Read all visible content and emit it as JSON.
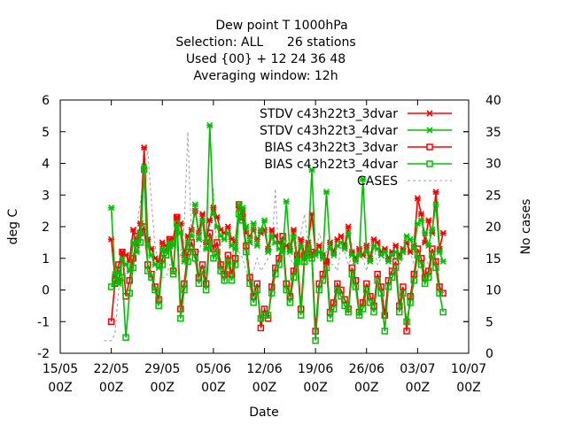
{
  "chart_data": {
    "type": "line",
    "title_lines": [
      "Dew point T 1000hPa",
      "Selection: ALL      26 stations",
      "Used {00} + 12 24 36 48",
      "Averaging window: 12h"
    ],
    "xlabel": "Date",
    "ylabel": "deg C",
    "y2label": "No cases",
    "ylim": [
      -2,
      6
    ],
    "y2lim": [
      0,
      40
    ],
    "yticks": [
      "-2",
      "-1",
      "0",
      "1",
      "2",
      "3",
      "4",
      "5",
      "6"
    ],
    "y2ticks": [
      "0",
      "5",
      "10",
      "15",
      "20",
      "25",
      "30",
      "35",
      "40"
    ],
    "xlim": [
      "2024-05-15T00",
      "2024-07-10T00"
    ],
    "xticks": [
      {
        "day": "15/05",
        "hour": "00Z"
      },
      {
        "day": "22/05",
        "hour": "00Z"
      },
      {
        "day": "29/05",
        "hour": "00Z"
      },
      {
        "day": "05/06",
        "hour": "00Z"
      },
      {
        "day": "12/06",
        "hour": "00Z"
      },
      {
        "day": "19/06",
        "hour": "00Z"
      },
      {
        "day": "26/06",
        "hour": "00Z"
      },
      {
        "day": "03/07",
        "hour": "00Z"
      },
      {
        "day": "10/07",
        "hour": "00Z"
      }
    ],
    "grid": false,
    "legend_position": "top-right",
    "x_step_hours": 12,
    "series": [
      {
        "name": "STDV c43h22t3_3dvar",
        "color": "#ff0000",
        "marker": "x",
        "axis": "y",
        "x_start": "2024-05-22T00",
        "values": [
          1.6,
          0.4,
          0.3,
          1.2,
          1.1,
          0.9,
          1.9,
          1.4,
          2.1,
          4.5,
          1.6,
          1.3,
          1.0,
          0.9,
          1.5,
          1.4,
          1.6,
          1.6,
          2.3,
          2.1,
          1.1,
          1.7,
          1.9,
          2.5,
          1.8,
          2.4,
          1.5,
          2.2,
          2.6,
          2.3,
          1.9,
          1.8,
          2.0,
          1.6,
          1.5,
          2.6,
          2.5,
          1.8,
          1.7,
          1.9,
          1.6,
          1.8,
          1.9,
          1.3,
          1.9,
          1.7,
          1.5,
          1.3,
          1.4,
          1.3,
          1.9,
          1.0,
          1.6,
          1.1,
          1.5,
          2.4,
          1.2,
          1.4,
          1.1,
          0.9,
          1.5,
          1.2,
          1.6,
          1.7,
          1.4,
          2.0,
          1.2,
          1.0,
          1.3,
          1.1,
          1.4,
          1.0,
          1.6,
          1.5,
          1.2,
          1.3,
          1.0,
          1.2,
          1.4,
          1.1,
          1.3,
          1.5,
          1.2,
          1.4,
          2.9,
          2.4,
          1.5,
          2.2,
          1.8,
          3.1,
          1.3,
          1.8
        ]
      },
      {
        "name": "STDV c43h22t3_4dvar",
        "color": "#00c000",
        "marker": "x",
        "axis": "y",
        "x_start": "2024-05-22T00",
        "values": [
          2.6,
          0.5,
          0.2,
          1.0,
          0.8,
          0.6,
          1.5,
          1.2,
          1.8,
          3.9,
          1.4,
          1.1,
          0.8,
          0.7,
          1.3,
          1.2,
          1.5,
          1.4,
          2.0,
          1.8,
          0.9,
          1.5,
          1.7,
          2.7,
          1.6,
          2.2,
          1.3,
          5.2,
          2.4,
          2.0,
          1.7,
          1.6,
          1.8,
          1.4,
          1.3,
          2.7,
          2.6,
          2.0,
          1.5,
          2.1,
          1.4,
          1.9,
          2.2,
          1.2,
          1.7,
          1.5,
          1.3,
          1.2,
          2.8,
          1.2,
          1.7,
          0.9,
          1.4,
          1.0,
          1.3,
          3.8,
          1.1,
          1.2,
          1.0,
          3.1,
          1.3,
          1.1,
          1.4,
          1.5,
          1.3,
          1.8,
          1.1,
          0.9,
          1.1,
          3.5,
          1.2,
          0.9,
          1.4,
          1.3,
          1.1,
          1.2,
          0.9,
          1.1,
          1.2,
          1.0,
          1.2,
          1.7,
          1.6,
          1.3,
          2.1,
          2.2,
          1.8,
          1.4,
          1.9,
          2.7,
          1.2,
          0.9
        ]
      },
      {
        "name": "BIAS c43h22t3_3dvar",
        "color": "#ff0000",
        "marker": "square",
        "axis": "y",
        "x_start": "2024-05-22T00",
        "values": [
          -1.0,
          0.2,
          0.8,
          1.2,
          -0.2,
          0.3,
          1.0,
          1.7,
          1.8,
          2.0,
          0.8,
          0.5,
          0.1,
          -0.3,
          1.0,
          1.3,
          1.6,
          0.6,
          2.3,
          -0.6,
          0.2,
          1.2,
          1.5,
          1.2,
          0.4,
          0.8,
          0.2,
          1.8,
          1.3,
          1.5,
          0.8,
          0.5,
          1.1,
          0.5,
          1.0,
          2.7,
          2.3,
          1.4,
          0.4,
          -0.2,
          0.2,
          -1.2,
          -0.6,
          -0.9,
          0.1,
          0.7,
          1.0,
          1.7,
          0.2,
          -0.2,
          0.6,
          1.1,
          -0.6,
          1.1,
          1.3,
          1.2,
          -1.3,
          0.2,
          0.5,
          0.9,
          -0.7,
          -0.4,
          0.2,
          0.0,
          -0.3,
          -0.6,
          0.7,
          0.3,
          -0.7,
          -0.4,
          0.2,
          -0.2,
          -0.5,
          0.5,
          0.1,
          -0.8,
          0.3,
          0.6,
          0.9,
          -0.5,
          0.1,
          -1.3,
          -0.2,
          0.5,
          1.3,
          1.0,
          0.4,
          0.6,
          1.3,
          0.9,
          0.1,
          -0.1
        ]
      },
      {
        "name": "BIAS c43h22t3_4dvar",
        "color": "#00c000",
        "marker": "square",
        "axis": "y",
        "x_start": "2024-05-22T00",
        "values": [
          0.1,
          0.3,
          0.6,
          0.4,
          -1.5,
          -0.1,
          0.7,
          1.6,
          1.5,
          3.8,
          0.6,
          0.4,
          0.0,
          -0.5,
          0.8,
          1.1,
          1.4,
          0.5,
          2.1,
          -0.9,
          0.0,
          0.9,
          1.3,
          1.0,
          0.2,
          0.6,
          0.0,
          1.6,
          1.0,
          1.2,
          0.6,
          0.3,
          0.9,
          0.3,
          0.8,
          2.4,
          2.2,
          1.2,
          0.2,
          -0.4,
          0.0,
          -0.9,
          -0.8,
          -0.8,
          -0.1,
          0.5,
          0.8,
          1.5,
          0.0,
          -0.4,
          0.4,
          0.9,
          -0.8,
          0.9,
          1.1,
          1.0,
          -1.6,
          0.0,
          0.3,
          0.7,
          -0.9,
          -0.6,
          0.0,
          -0.2,
          -0.5,
          -0.7,
          0.5,
          0.1,
          -0.8,
          -0.6,
          0.0,
          -0.4,
          -0.7,
          0.3,
          -0.1,
          -1.3,
          0.1,
          0.4,
          0.7,
          -0.7,
          -0.1,
          -1.0,
          -0.4,
          0.3,
          1.1,
          0.8,
          0.2,
          0.4,
          1.1,
          0.7,
          -0.1,
          -0.7
        ]
      },
      {
        "name": "CASES",
        "color": "#a0a0a0",
        "marker": "none",
        "dashed": true,
        "axis": "y2",
        "x_start": "2024-05-21T00",
        "values": [
          2,
          2,
          2,
          3,
          10,
          12,
          14,
          16,
          18,
          20,
          24,
          29,
          32,
          24,
          17,
          14,
          12,
          12,
          14,
          14,
          13,
          16,
          20,
          35,
          18,
          14,
          16,
          18,
          16,
          20,
          26,
          15,
          12,
          11,
          14,
          15,
          17,
          16,
          15,
          13,
          12,
          13,
          15,
          13,
          14,
          15,
          16,
          26,
          14,
          16,
          18,
          15,
          14,
          18,
          19,
          22,
          17,
          16,
          15,
          19,
          17,
          16,
          14,
          14,
          13,
          17,
          16,
          14,
          15,
          14,
          16,
          15,
          13,
          16,
          17,
          14,
          15,
          15,
          14,
          12,
          13,
          14,
          15,
          17,
          16,
          14,
          13,
          15,
          15,
          14
        ]
      }
    ]
  }
}
